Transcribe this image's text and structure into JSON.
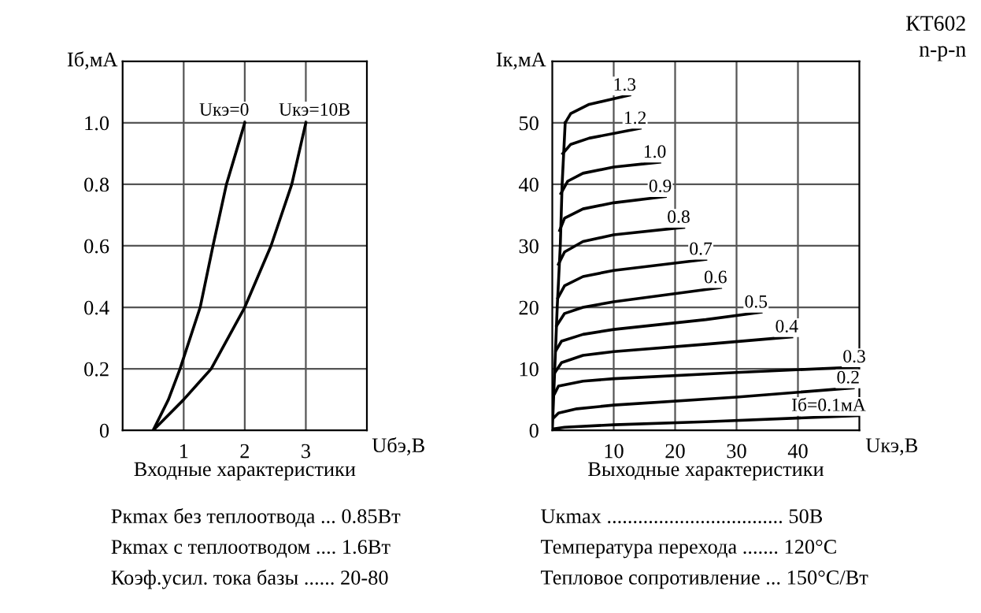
{
  "chart_data": [
    {
      "type": "line",
      "title": "Входные характеристики",
      "xlabel": "Uбэ,В",
      "ylabel": "Iб,мА",
      "xlim": [
        0,
        4
      ],
      "ylim": [
        0,
        1.2
      ],
      "xticks": [
        1,
        2,
        3
      ],
      "yticks": [
        0,
        0.2,
        0.4,
        0.6,
        0.8,
        {
          "value": 1.0,
          "label": "1.0"
        }
      ],
      "grid": true,
      "series": [
        {
          "name": "Uкэ=0",
          "color": "#000000",
          "x": [
            0.5,
            0.75,
            0.94,
            1.27,
            1.48,
            1.7,
            2.0
          ],
          "values": [
            0,
            0.1,
            0.2,
            0.4,
            0.6,
            0.8,
            1.0
          ]
        },
        {
          "name": "Uкэ=10В",
          "color": "#000000",
          "x": [
            0.5,
            1.0,
            1.45,
            2.0,
            2.43,
            2.77,
            3.0
          ],
          "values": [
            0,
            0.1,
            0.2,
            0.4,
            0.6,
            0.8,
            1.0
          ]
        }
      ],
      "annotations": [
        "Pкmax без теплоотвода ... 0.85Вт",
        "Pкmax с теплоотводом .... 1.6Вт",
        "Коэф.усил. тока базы ...... 20-80"
      ]
    },
    {
      "type": "line",
      "title": "Выходные характеристики",
      "xlabel": "Uкэ,В",
      "ylabel": "Iк,мА",
      "xlim": [
        0,
        50
      ],
      "ylim": [
        0,
        60
      ],
      "xticks": [
        10,
        20,
        30,
        40
      ],
      "yticks": [
        0,
        10,
        20,
        30,
        40,
        50
      ],
      "grid": true,
      "series": [
        {
          "color": "#000000",
          "x": [
            0,
            0.4,
            0.8,
            1.3,
            1.6,
            2.1
          ],
          "values": [
            0,
            10,
            20,
            30,
            40,
            50
          ]
        },
        {
          "name": "Iб=0.1мА",
          "color": "#000000",
          "x": [
            0,
            2,
            10,
            25,
            50
          ],
          "values": [
            0.2,
            0.5,
            0.9,
            1.4,
            2.4
          ]
        },
        {
          "name": "0.2",
          "color": "#000000",
          "x": [
            0.2,
            1,
            4,
            10,
            30,
            49
          ],
          "values": [
            2,
            2.8,
            3.5,
            4.1,
            5.4,
            6.9
          ]
        },
        {
          "name": "0.3",
          "color": "#000000",
          "x": [
            0.4,
            1,
            5,
            10,
            30,
            50
          ],
          "values": [
            6,
            7.2,
            8,
            8.4,
            9.4,
            10.3
          ]
        },
        {
          "name": "0.4",
          "color": "#000000",
          "x": [
            0.5,
            1.5,
            5,
            10,
            25,
            39
          ],
          "values": [
            9.5,
            11,
            12.2,
            12.8,
            14,
            15.2
          ]
        },
        {
          "name": "0.5",
          "color": "#000000",
          "x": [
            0.6,
            1.5,
            5,
            10,
            25,
            34
          ],
          "values": [
            13,
            14.5,
            15.6,
            16.4,
            18,
            19.2
          ]
        },
        {
          "name": "0.6",
          "color": "#000000",
          "x": [
            0.7,
            2,
            5,
            10,
            27.4
          ],
          "values": [
            17,
            19,
            20,
            20.9,
            23.2
          ]
        },
        {
          "name": "0.7",
          "color": "#000000",
          "x": [
            0.9,
            2,
            5,
            10,
            25
          ],
          "values": [
            21.5,
            23.5,
            25,
            26,
            27.8
          ]
        },
        {
          "name": "0.8",
          "color": "#000000",
          "x": [
            1.0,
            2,
            5,
            10,
            21.4
          ],
          "values": [
            27,
            29,
            30.7,
            31.8,
            33
          ]
        },
        {
          "name": "0.9",
          "color": "#000000",
          "x": [
            1.2,
            2,
            5,
            10,
            18.4
          ],
          "values": [
            32.5,
            34.5,
            36,
            37,
            38
          ]
        },
        {
          "name": "1.0",
          "color": "#000000",
          "x": [
            1.4,
            2.5,
            5,
            10,
            17.5
          ],
          "values": [
            38.5,
            40.5,
            41.8,
            42.8,
            43.6
          ]
        },
        {
          "name": "1.2",
          "color": "#000000",
          "x": [
            1.7,
            3,
            6,
            14.3
          ],
          "values": [
            45,
            46.5,
            47.5,
            49.1
          ]
        },
        {
          "name": "1.3",
          "color": "#000000",
          "x": [
            2.1,
            3,
            6,
            12.6
          ],
          "values": [
            50,
            51.5,
            53,
            54.5
          ]
        }
      ],
      "annotations": [
        "КТ602\nn-p-n",
        "Uкmax .................................. 50В",
        "Температура перехода ....... 120°C",
        "Тепловое сопротивление ... 150°C/Вт"
      ]
    }
  ]
}
